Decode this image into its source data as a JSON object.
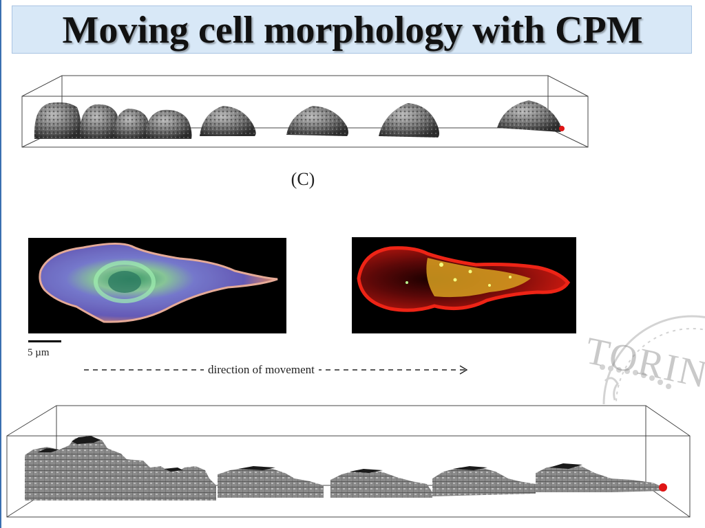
{
  "slide": {
    "title": "Moving cell morphology with CPM",
    "panel_label": "(C)",
    "scale_label": "5 µm",
    "direction_label": "direction of movement",
    "watermark_text": "TORINO"
  },
  "colors": {
    "title_background": "#d8e8f7",
    "cell_gray": "#6f6f6f",
    "leading_edge_marker": "#e01515"
  }
}
